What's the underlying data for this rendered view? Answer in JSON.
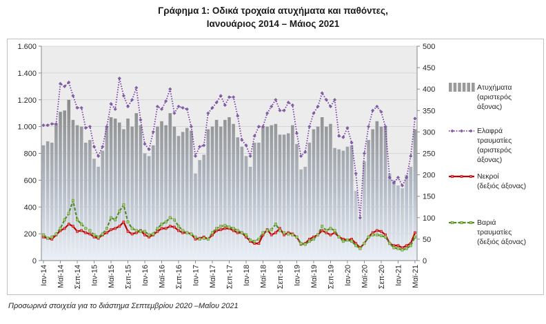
{
  "chart_data": {
    "type": "bar",
    "title": "Γράφημα 1: Οδικά τροχαία ατυχήματα και παθόντες,",
    "subtitle": "Ιανουάριος 2014 – Μάιος 2021",
    "categories": [
      "Ιαν-14",
      "",
      "",
      "",
      "Μαϊ-14",
      "",
      "",
      "",
      "Σεπ-14",
      "",
      "",
      "",
      "Ιαν-15",
      "",
      "",
      "",
      "Μαϊ-15",
      "",
      "",
      "",
      "Σεπ-15",
      "",
      "",
      "",
      "Ιαν-16",
      "",
      "",
      "",
      "Μαϊ-16",
      "",
      "",
      "",
      "Σεπ-16",
      "",
      "",
      "",
      "Ιαν-17",
      "",
      "",
      "",
      "Μαϊ-17",
      "",
      "",
      "",
      "Σεπ-17",
      "",
      "",
      "",
      "Ιαν-18",
      "",
      "",
      "",
      "Μαϊ-18",
      "",
      "",
      "",
      "Σεπ-18",
      "",
      "",
      "",
      "Ιαν-19",
      "",
      "",
      "",
      "Μαϊ-19",
      "",
      "",
      "",
      "Σεπ-19",
      "",
      "",
      "",
      "Ιαν-20",
      "",
      "",
      "",
      "Μαϊ-20",
      "",
      "",
      "",
      "Σεπ-20",
      "",
      "",
      "",
      "Ιαν-21",
      "",
      "",
      "",
      "Μαϊ-21"
    ],
    "y_left": {
      "range": [
        0,
        1600
      ],
      "ticks": [
        {
          "value": 0,
          "label": "0"
        },
        {
          "value": 200,
          "label": "200"
        },
        {
          "value": 400,
          "label": "400"
        },
        {
          "value": 600,
          "label": "600"
        },
        {
          "value": 800,
          "label": "800"
        },
        {
          "value": 1000,
          "label": "1.000"
        },
        {
          "value": 1200,
          "label": "1.200"
        },
        {
          "value": 1400,
          "label": "1.400"
        },
        {
          "value": 1600,
          "label": "1.600"
        }
      ]
    },
    "y_right": {
      "range": [
        0,
        500
      ],
      "ticks": [
        {
          "value": 0,
          "label": "0"
        },
        {
          "value": 50,
          "label": "50"
        },
        {
          "value": 100,
          "label": "100"
        },
        {
          "value": 150,
          "label": "150"
        },
        {
          "value": 200,
          "label": "200"
        },
        {
          "value": 250,
          "label": "250"
        },
        {
          "value": 300,
          "label": "300"
        },
        {
          "value": 350,
          "label": "350"
        },
        {
          "value": 400,
          "label": "400"
        },
        {
          "value": 450,
          "label": "450"
        },
        {
          "value": 500,
          "label": "500"
        }
      ]
    },
    "grid": true,
    "legend_position": "right",
    "series": [
      {
        "name": "Ατυχήματα\n(αριστερός\nάξονας)",
        "type": "bar",
        "axis": "left",
        "color": "#9a9a9a",
        "values": [
          860,
          890,
          880,
          1020,
          1110,
          1120,
          1200,
          1050,
          1010,
          1000,
          880,
          900,
          760,
          700,
          820,
          1000,
          1070,
          1060,
          1030,
          980,
          1060,
          1000,
          1100,
          1010,
          800,
          780,
          860,
          1000,
          1040,
          1010,
          1100,
          1000,
          930,
          960,
          990,
          970,
          650,
          750,
          790,
          980,
          1000,
          1050,
          1000,
          1050,
          1070,
          1020,
          920,
          850,
          780,
          700,
          880,
          880,
          1000,
          1000,
          1010,
          1020,
          940,
          940,
          950,
          1010,
          870,
          680,
          700,
          880,
          980,
          1000,
          1070,
          1000,
          1020,
          840,
          830,
          820,
          850,
          860,
          520,
          310,
          740,
          900,
          980,
          1040,
          1000,
          1000,
          650,
          600,
          560,
          540,
          640,
          700,
          980
        ]
      },
      {
        "name": "Ελαφρά\nτραυματίες\n(αριστερός\nάξονας)",
        "type": "line",
        "axis": "left",
        "line_style": "dotted",
        "color": "#7030a0",
        "values": [
          1010,
          1010,
          1020,
          1020,
          1320,
          1300,
          1330,
          1230,
          1140,
          1140,
          990,
          1000,
          850,
          780,
          850,
          1000,
          1170,
          1130,
          1360,
          1230,
          1150,
          1200,
          1290,
          1050,
          870,
          830,
          960,
          1150,
          1130,
          1190,
          1280,
          1100,
          1150,
          1140,
          1130,
          1000,
          780,
          850,
          860,
          1100,
          1140,
          1180,
          1230,
          1160,
          1220,
          1220,
          1080,
          900,
          860,
          780,
          930,
          1000,
          1000,
          1100,
          1150,
          1200,
          1120,
          1120,
          1180,
          1160,
          950,
          780,
          810,
          1000,
          1100,
          1150,
          1250,
          1200,
          1150,
          1200,
          930,
          920,
          990,
          880,
          650,
          320,
          800,
          1000,
          1120,
          1150,
          1110,
          1000,
          620,
          580,
          620,
          560,
          620,
          780,
          1060
        ]
      },
      {
        "name": "Νεκροί\n(δεξιός άξονας)",
        "type": "line",
        "axis": "right",
        "line_style": "solid",
        "color": "#c00000",
        "values": [
          55,
          52,
          50,
          60,
          70,
          75,
          85,
          80,
          68,
          70,
          65,
          62,
          55,
          52,
          60,
          65,
          72,
          75,
          80,
          90,
          68,
          62,
          65,
          70,
          60,
          55,
          60,
          68,
          75,
          75,
          80,
          78,
          70,
          65,
          65,
          62,
          50,
          52,
          55,
          50,
          60,
          70,
          72,
          75,
          75,
          70,
          65,
          65,
          55,
          45,
          40,
          40,
          60,
          72,
          60,
          65,
          75,
          60,
          65,
          62,
          55,
          38,
          40,
          50,
          55,
          60,
          70,
          65,
          60,
          65,
          55,
          50,
          48,
          50,
          40,
          30,
          40,
          55,
          65,
          70,
          68,
          60,
          40,
          35,
          35,
          30,
          35,
          40,
          65
        ]
      },
      {
        "name": "Βαριά\nτραυματίες\n(δεξιός άξονας)",
        "type": "line",
        "axis": "right",
        "line_style": "dashed",
        "color": "#4f8a2a",
        "values": [
          60,
          52,
          55,
          62,
          75,
          95,
          110,
          140,
          95,
          85,
          75,
          70,
          60,
          55,
          62,
          75,
          100,
          95,
          115,
          130,
          90,
          75,
          70,
          68,
          68,
          60,
          62,
          75,
          85,
          90,
          100,
          95,
          80,
          70,
          65,
          62,
          55,
          50,
          52,
          50,
          65,
          75,
          80,
          82,
          78,
          75,
          70,
          65,
          60,
          48,
          45,
          50,
          65,
          70,
          72,
          85,
          70,
          65,
          62,
          60,
          55,
          40,
          38,
          45,
          50,
          60,
          80,
          70,
          75,
          70,
          55,
          45,
          48,
          45,
          35,
          28,
          40,
          55,
          60,
          60,
          58,
          55,
          40,
          30,
          28,
          25,
          28,
          35,
          55
        ]
      }
    ]
  },
  "footnote": "Προσωρινά στοιχεία για το διάστημα Σεπτεμβρίου 2020 –Μαΐου 2021"
}
